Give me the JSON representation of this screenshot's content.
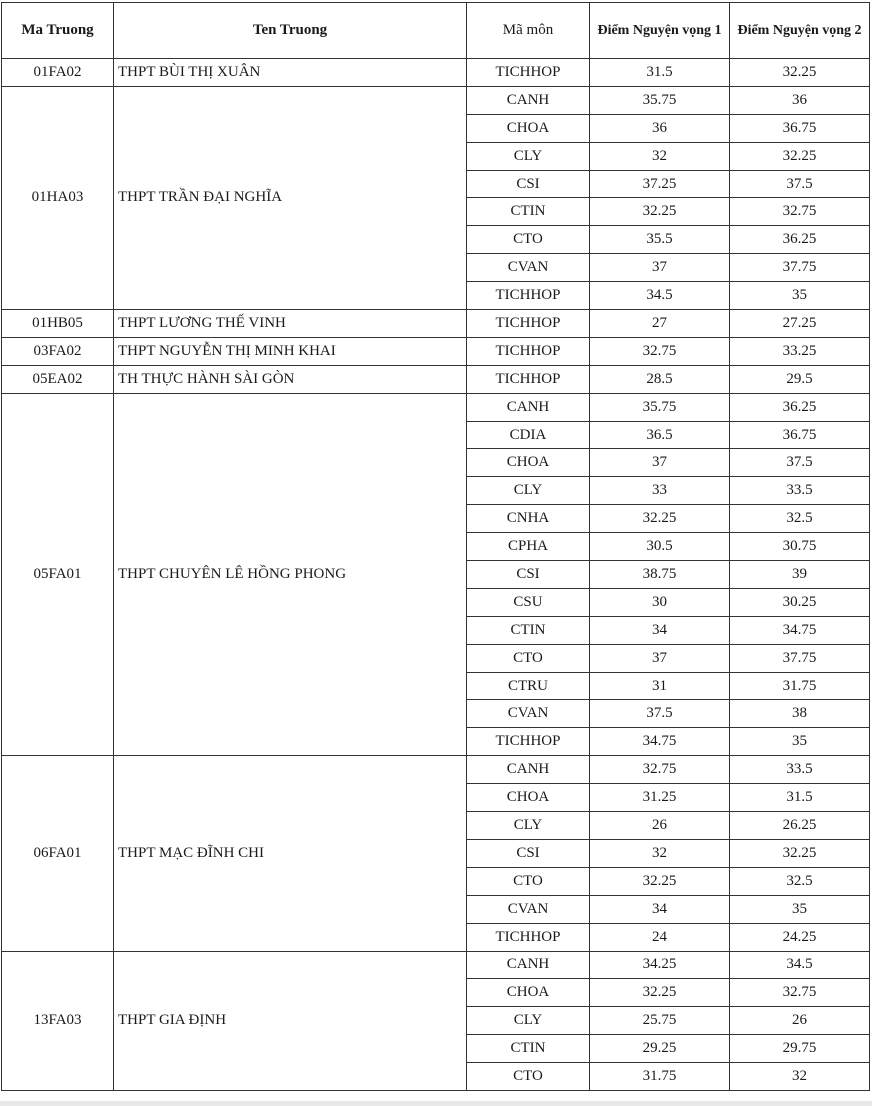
{
  "headers": {
    "ma_truong": "Ma Truong",
    "ten_truong": "Ten Truong",
    "ma_mon": "Mã môn",
    "nv1": "Điểm Nguyện vọng 1",
    "nv2": "Điểm Nguyện vọng 2"
  },
  "schools": [
    {
      "code": "01FA02",
      "name": "THPT BÙI THỊ XUÂN",
      "subjects": [
        [
          "TICHHOP",
          "31.5",
          "32.25"
        ]
      ]
    },
    {
      "code": "01HA03",
      "name": "THPT TRẦN ĐẠI NGHĨA",
      "subjects": [
        [
          "CANH",
          "35.75",
          "36"
        ],
        [
          "CHOA",
          "36",
          "36.75"
        ],
        [
          "CLY",
          "32",
          "32.25"
        ],
        [
          "CSI",
          "37.25",
          "37.5"
        ],
        [
          "CTIN",
          "32.25",
          "32.75"
        ],
        [
          "CTO",
          "35.5",
          "36.25"
        ],
        [
          "CVAN",
          "37",
          "37.75"
        ],
        [
          "TICHHOP",
          "34.5",
          "35"
        ]
      ]
    },
    {
      "code": "01HB05",
      "name": "THPT LƯƠNG THẾ VINH",
      "subjects": [
        [
          "TICHHOP",
          "27",
          "27.25"
        ]
      ]
    },
    {
      "code": "03FA02",
      "name": "THPT NGUYỄN THỊ MINH KHAI",
      "subjects": [
        [
          "TICHHOP",
          "32.75",
          "33.25"
        ]
      ]
    },
    {
      "code": "05EA02",
      "name": "TH THỰC HÀNH SÀI GÒN",
      "subjects": [
        [
          "TICHHOP",
          "28.5",
          "29.5"
        ]
      ]
    },
    {
      "code": "05FA01",
      "name": "THPT CHUYÊN LÊ HỒNG PHONG",
      "subjects": [
        [
          "CANH",
          "35.75",
          "36.25"
        ],
        [
          "CDIA",
          "36.5",
          "36.75"
        ],
        [
          "CHOA",
          "37",
          "37.5"
        ],
        [
          "CLY",
          "33",
          "33.5"
        ],
        [
          "CNHA",
          "32.25",
          "32.5"
        ],
        [
          "CPHA",
          "30.5",
          "30.75"
        ],
        [
          "CSI",
          "38.75",
          "39"
        ],
        [
          "CSU",
          "30",
          "30.25"
        ],
        [
          "CTIN",
          "34",
          "34.75"
        ],
        [
          "CTO",
          "37",
          "37.75"
        ],
        [
          "CTRU",
          "31",
          "31.75"
        ],
        [
          "CVAN",
          "37.5",
          "38"
        ],
        [
          "TICHHOP",
          "34.75",
          "35"
        ]
      ]
    },
    {
      "code": "06FA01",
      "name": "THPT MẠC ĐĨNH CHI",
      "subjects": [
        [
          "CANH",
          "32.75",
          "33.5"
        ],
        [
          "CHOA",
          "31.25",
          "31.5"
        ],
        [
          "CLY",
          "26",
          "26.25"
        ],
        [
          "CSI",
          "32",
          "32.25"
        ],
        [
          "CTO",
          "32.25",
          "32.5"
        ],
        [
          "CVAN",
          "34",
          "35"
        ],
        [
          "TICHHOP",
          "24",
          "24.25"
        ]
      ]
    },
    {
      "code": "13FA03",
      "name": "THPT GIA ĐỊNH",
      "subjects": [
        [
          "CANH",
          "34.25",
          "34.5"
        ],
        [
          "CHOA",
          "32.25",
          "32.75"
        ],
        [
          "CLY",
          "25.75",
          "26"
        ],
        [
          "CTIN",
          "29.25",
          "29.75"
        ],
        [
          "CTO",
          "31.75",
          "32"
        ]
      ]
    }
  ]
}
